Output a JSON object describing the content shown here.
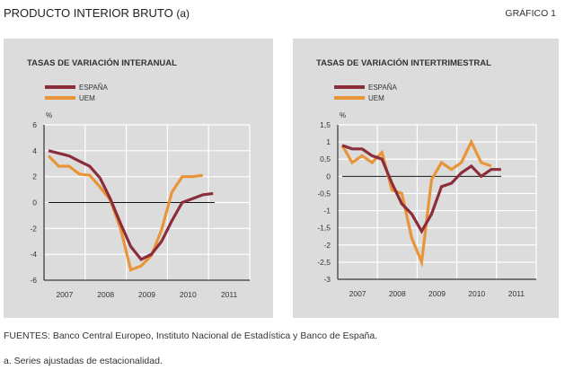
{
  "header": {
    "title": "PRODUCTO INTERIOR BRUTO",
    "title_suffix": "(a)",
    "figure_ref": "GRÁFICO 1"
  },
  "footer": {
    "sources": "FUENTES: Banco Central Europeo, Instituto Nacional de Estadística y Banco de España.",
    "note": "a. Series ajustadas de estacionalidad."
  },
  "colors": {
    "espana": "#8b2d3a",
    "uem": "#e8953a",
    "panel_bg": "#dcdcdc",
    "grid": "#ffffff",
    "axis": "#111111"
  },
  "chart_data": [
    {
      "type": "line",
      "title": "TASAS DE VARIACIÓN INTERANUAL",
      "ylabel": "%",
      "xlabel": "",
      "ylim": [
        -6,
        6
      ],
      "yticks": [
        6,
        4,
        2,
        0,
        -2,
        -4,
        -6
      ],
      "ytick_labels": [
        "6",
        "4",
        "2",
        "0",
        "-2",
        "-4",
        "-6"
      ],
      "xticks": [
        "2007",
        "2008",
        "2009",
        "2010",
        "2011"
      ],
      "x": [
        "2007Q1",
        "2007Q2",
        "2007Q3",
        "2007Q4",
        "2008Q1",
        "2008Q2",
        "2008Q3",
        "2008Q4",
        "2009Q1",
        "2009Q2",
        "2009Q3",
        "2009Q4",
        "2010Q1",
        "2010Q2",
        "2010Q3",
        "2010Q4",
        "2011Q1"
      ],
      "legend": [
        "ESPAÑA",
        "UEM"
      ],
      "legend_position": "top-left",
      "grid": true,
      "series": [
        {
          "name": "ESPAÑA",
          "values": [
            4.0,
            3.8,
            3.6,
            3.2,
            2.8,
            1.9,
            0.3,
            -1.6,
            -3.4,
            -4.4,
            -4.0,
            -3.0,
            -1.4,
            0.0,
            0.3,
            0.6,
            0.7
          ]
        },
        {
          "name": "UEM",
          "values": [
            3.6,
            2.8,
            2.8,
            2.2,
            2.1,
            1.2,
            0.2,
            -2.0,
            -5.2,
            -4.9,
            -4.1,
            -2.1,
            0.8,
            2.0,
            2.0,
            2.1,
            null
          ]
        }
      ]
    },
    {
      "type": "line",
      "title": "TASAS DE VARIACIÓN INTERTRIMESTRAL",
      "ylabel": "%",
      "xlabel": "",
      "ylim": [
        -3,
        1.5
      ],
      "yticks": [
        1.5,
        1,
        0.5,
        0,
        -0.5,
        -1,
        -1.5,
        -2,
        -2.5,
        -3
      ],
      "ytick_labels": [
        "1,5",
        "1",
        "0,5",
        "0",
        "-0,5",
        "-1",
        "-1,5",
        "-2",
        "-2,5",
        "-3"
      ],
      "xticks": [
        "2007",
        "2008",
        "2009",
        "2010",
        "2011"
      ],
      "x": [
        "2007Q1",
        "2007Q2",
        "2007Q3",
        "2007Q4",
        "2008Q1",
        "2008Q2",
        "2008Q3",
        "2008Q4",
        "2009Q1",
        "2009Q2",
        "2009Q3",
        "2009Q4",
        "2010Q1",
        "2010Q2",
        "2010Q3",
        "2010Q4",
        "2011Q1"
      ],
      "legend": [
        "ESPAÑA",
        "UEM"
      ],
      "legend_position": "top-left",
      "grid": true,
      "series": [
        {
          "name": "ESPAÑA",
          "values": [
            0.9,
            0.8,
            0.8,
            0.6,
            0.5,
            -0.2,
            -0.8,
            -1.1,
            -1.6,
            -1.1,
            -0.3,
            -0.2,
            0.1,
            0.3,
            0.0,
            0.2,
            0.2
          ]
        },
        {
          "name": "UEM",
          "values": [
            0.9,
            0.4,
            0.6,
            0.4,
            0.7,
            -0.4,
            -0.5,
            -1.8,
            -2.5,
            -0.1,
            0.4,
            0.2,
            0.4,
            1.0,
            0.4,
            0.3,
            null
          ]
        }
      ]
    }
  ]
}
